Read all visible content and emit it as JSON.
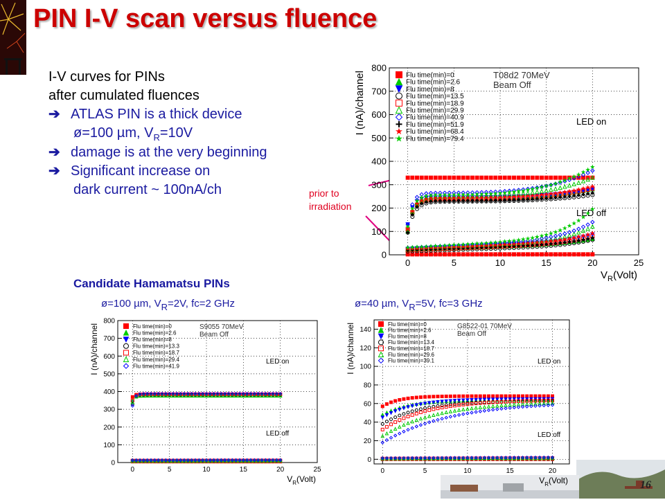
{
  "slide": {
    "title": "PIN I-V scan versus fluence",
    "bullets": [
      {
        "text": "I-V curves for PINs",
        "style": "plain"
      },
      {
        "text": "after cumulated fluences",
        "style": "plain"
      }
    ],
    "arrows": [
      {
        "line1_a": "ATLAS PIN is a thick device",
        "line2_a": "ø=100 µm, V",
        "line2_sub": "R",
        "line2_b": "=10V"
      },
      {
        "line1_a": "damage is at the very beginning"
      },
      {
        "line1_a": "Significant increase on",
        "line2_a": "dark current  ~ 100nA/ch"
      }
    ],
    "note": [
      "prior to",
      "irradiation"
    ],
    "section_title": "Candidate Hamamatsu PINs",
    "caption_left": {
      "a": "ø=100 µm, V",
      "sub": "R",
      "b": "=2V, fc=2 GHz"
    },
    "caption_right": {
      "a": "ø=40 µm, V",
      "sub": "R",
      "b": "=5V, fc=3 GHz"
    },
    "page_number": "16",
    "colors": {
      "title": "#cc0000",
      "text_blue": "#1a1aa0",
      "note_red": "#e00020"
    }
  },
  "chart_data": [
    {
      "type": "scatter",
      "title": "",
      "annotation": [
        "T08d2 70MeV",
        "Beam Off"
      ],
      "region_labels": [
        "LED on",
        "LED off"
      ],
      "xlabel": "V",
      "xlabel_sub": "R",
      "xlabel_unit": "(Volt)",
      "ylabel": "I (nA)/channel",
      "xlim": [
        -2,
        25
      ],
      "ylim": [
        0,
        800
      ],
      "xticks": [
        0,
        5,
        10,
        15,
        20,
        25
      ],
      "yticks": [
        0,
        100,
        200,
        300,
        400,
        500,
        600,
        700,
        800
      ],
      "grid": true,
      "legend": {
        "placement": "top-left",
        "entries": [
          {
            "name": "Flu time(min)=0",
            "color": "#ff0000",
            "marker": "square-filled"
          },
          {
            "name": "Flu time(min)=2.6",
            "color": "#00cc00",
            "marker": "triangle-up-filled"
          },
          {
            "name": "Flu time(min)=8",
            "color": "#0000ff",
            "marker": "triangle-down-filled"
          },
          {
            "name": "Flu time(min)=13.5",
            "color": "#000000",
            "marker": "circle-open"
          },
          {
            "name": "Flu time(min)=18.9",
            "color": "#ff0000",
            "marker": "square-open"
          },
          {
            "name": "Flu time(min)=29.9",
            "color": "#00cc00",
            "marker": "triangle-up-open"
          },
          {
            "name": "Flu time(min)=40.9",
            "color": "#0000ff",
            "marker": "diamond-open"
          },
          {
            "name": "Flu time(min)=51.9",
            "color": "#000000",
            "marker": "cross-open"
          },
          {
            "name": "Flu time(min)=68.4",
            "color": "#ff0000",
            "marker": "star"
          },
          {
            "name": "Flu time(min)=79.4",
            "color": "#00cc00",
            "marker": "star"
          }
        ]
      },
      "series_on": [
        {
          "plateau": 330,
          "knee": 0,
          "rise": 0,
          "start": 330
        },
        {
          "plateau": 240,
          "knee": 0.6,
          "rise": 40,
          "start": 110
        },
        {
          "plateau": 245,
          "knee": 0.5,
          "rise": 35,
          "start": 130
        },
        {
          "plateau": 228,
          "knee": 0.7,
          "rise": 28,
          "start": 95
        },
        {
          "plateau": 238,
          "knee": 0.6,
          "rise": 45,
          "start": 110
        },
        {
          "plateau": 250,
          "knee": 0.6,
          "rise": 80,
          "start": 100
        },
        {
          "plateau": 265,
          "knee": 0.5,
          "rise": 95,
          "start": 130
        },
        {
          "plateau": 230,
          "knee": 0.6,
          "rise": 35,
          "start": 95
        },
        {
          "plateau": 242,
          "knee": 0.6,
          "rise": 50,
          "start": 110
        },
        {
          "plateau": 255,
          "knee": 0.6,
          "rise": 120,
          "start": 120
        }
      ],
      "series_off": [
        {
          "base": 2,
          "slope": 0,
          "tail": 0
        },
        {
          "base": 20,
          "slope": 1.4,
          "tail": 20
        },
        {
          "base": 25,
          "slope": 1.6,
          "tail": 30
        },
        {
          "base": 15,
          "slope": 1.2,
          "tail": 25
        },
        {
          "base": 20,
          "slope": 1.5,
          "tail": 30
        },
        {
          "base": 25,
          "slope": 1.8,
          "tail": 60
        },
        {
          "base": 30,
          "slope": 2.0,
          "tail": 70
        },
        {
          "base": 20,
          "slope": 1.4,
          "tail": 25
        },
        {
          "base": 25,
          "slope": 1.6,
          "tail": 35
        },
        {
          "base": 30,
          "slope": 2.2,
          "tail": 120
        }
      ]
    },
    {
      "type": "scatter",
      "title": "",
      "annotation": [
        "S9055 70MeV",
        "Beam Off"
      ],
      "region_labels": [
        "LED on",
        "LED off"
      ],
      "xlabel": "V",
      "xlabel_sub": "R",
      "xlabel_unit": "(Volt)",
      "ylabel": "I (nA)/channel",
      "xlim": [
        -2,
        25
      ],
      "ylim": [
        0,
        800
      ],
      "xticks": [
        0,
        5,
        10,
        15,
        20,
        25
      ],
      "yticks": [
        0,
        100,
        200,
        300,
        400,
        500,
        600,
        700,
        800
      ],
      "grid": true,
      "legend": {
        "placement": "top-left",
        "entries": [
          {
            "name": "Flu time(min)=0",
            "color": "#ff0000",
            "marker": "square-filled"
          },
          {
            "name": "Flu time(min)=2.6",
            "color": "#00cc00",
            "marker": "triangle-up-filled"
          },
          {
            "name": "Flu time(min)=8",
            "color": "#0000ff",
            "marker": "triangle-down-filled"
          },
          {
            "name": "Flu time(min)=13.3",
            "color": "#000000",
            "marker": "circle-open"
          },
          {
            "name": "Flu time(min)=18.7",
            "color": "#ff0000",
            "marker": "square-open"
          },
          {
            "name": "Flu time(min)=29.4",
            "color": "#00cc00",
            "marker": "triangle-up-open"
          },
          {
            "name": "Flu time(min)=41.9",
            "color": "#0000ff",
            "marker": "diamond-open"
          }
        ]
      },
      "series_on": [
        {
          "plateau": 385,
          "knee": 0.3,
          "rise": 0,
          "start": 370
        },
        {
          "plateau": 376,
          "knee": 0.3,
          "rise": 0,
          "start": 350
        },
        {
          "plateau": 382,
          "knee": 0.3,
          "rise": 0,
          "start": 340
        },
        {
          "plateau": 380,
          "knee": 0.3,
          "rise": 0,
          "start": 330
        },
        {
          "plateau": 384,
          "knee": 0.3,
          "rise": 0,
          "start": 350
        },
        {
          "plateau": 378,
          "knee": 0.3,
          "rise": 0,
          "start": 340
        },
        {
          "plateau": 388,
          "knee": 0.3,
          "rise": 0,
          "start": 320
        }
      ],
      "series_off": [
        {
          "base": 5,
          "slope": 0,
          "tail": 0
        },
        {
          "base": 8,
          "slope": 0.05,
          "tail": 0
        },
        {
          "base": 9,
          "slope": 0.05,
          "tail": 0
        },
        {
          "base": 10,
          "slope": 0.05,
          "tail": 0
        },
        {
          "base": 11,
          "slope": 0.05,
          "tail": 0
        },
        {
          "base": 12,
          "slope": 0.05,
          "tail": 0
        },
        {
          "base": 13,
          "slope": 0.05,
          "tail": 0
        }
      ]
    },
    {
      "type": "scatter",
      "title": "",
      "annotation": [
        "G8522-01 70MeV",
        "Beam Off"
      ],
      "region_labels": [
        "LED on",
        "LED off"
      ],
      "xlabel": "V",
      "xlabel_sub": "R",
      "xlabel_unit": "(Volt)",
      "ylabel": "I (nA)/channel",
      "xlim": [
        -1,
        22
      ],
      "ylim": [
        -5,
        150
      ],
      "xticks": [
        0,
        5,
        10,
        15,
        20
      ],
      "yticks": [
        0,
        20,
        40,
        60,
        80,
        100,
        120,
        140
      ],
      "grid": true,
      "legend": {
        "placement": "top-left",
        "entries": [
          {
            "name": "Flu time(min)=0",
            "color": "#ff0000",
            "marker": "square-filled"
          },
          {
            "name": "Flu time(min)=2.6",
            "color": "#00cc00",
            "marker": "triangle-up-filled"
          },
          {
            "name": "Flu time(min)=8",
            "color": "#0000ff",
            "marker": "triangle-down-filled"
          },
          {
            "name": "Flu time(min)=13.4",
            "color": "#000000",
            "marker": "circle-open"
          },
          {
            "name": "Flu time(min)=18.7",
            "color": "#ff0000",
            "marker": "square-open"
          },
          {
            "name": "Flu time(min)=29.6",
            "color": "#00cc00",
            "marker": "triangle-up-open"
          },
          {
            "name": "Flu time(min)=39.1",
            "color": "#0000ff",
            "marker": "diamond-open"
          }
        ]
      },
      "series_on": [
        {
          "plateau": 68,
          "knee": 0,
          "rise": 0,
          "start": 57,
          "curve": 0.5
        },
        {
          "plateau": 64,
          "knee": 0,
          "rise": 0,
          "start": 48,
          "curve": 0.8
        },
        {
          "plateau": 65,
          "knee": 0,
          "rise": 0,
          "start": 45,
          "curve": 0.9
        },
        {
          "plateau": 63,
          "knee": 0,
          "rise": 0,
          "start": 38,
          "curve": 1.1
        },
        {
          "plateau": 64,
          "knee": 0,
          "rise": 0,
          "start": 32,
          "curve": 1.3
        },
        {
          "plateau": 62,
          "knee": 0,
          "rise": 0,
          "start": 25,
          "curve": 1.6
        },
        {
          "plateau": 62,
          "knee": 0,
          "rise": 0,
          "start": 18,
          "curve": 2.0
        }
      ],
      "series_off": [
        {
          "base": 0,
          "slope": 0,
          "tail": 0
        },
        {
          "base": 0.5,
          "slope": 0.02,
          "tail": 0
        },
        {
          "base": 0.6,
          "slope": 0.02,
          "tail": 0
        },
        {
          "base": 0.7,
          "slope": 0.02,
          "tail": 0
        },
        {
          "base": 0.8,
          "slope": 0.03,
          "tail": 0
        },
        {
          "base": 1.0,
          "slope": 0.03,
          "tail": 0
        },
        {
          "base": 1.2,
          "slope": 0.04,
          "tail": 0
        }
      ]
    }
  ]
}
